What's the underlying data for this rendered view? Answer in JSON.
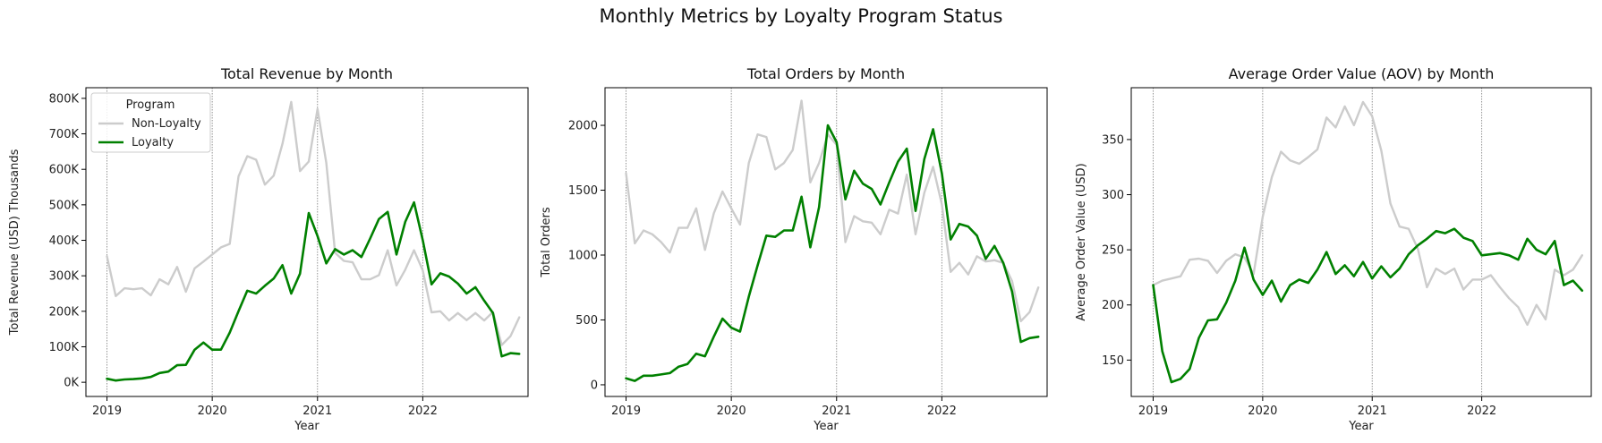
{
  "figure": {
    "suptitle": "Monthly Metrics by Loyalty Program Status"
  },
  "colors": {
    "non_loyalty": "#cccccc",
    "loyalty": "#008000",
    "vline": "#888888"
  },
  "legend": {
    "title": "Program",
    "entries": [
      "Non-Loyalty",
      "Loyalty"
    ],
    "placement": "top-left"
  },
  "chart_data": [
    {
      "type": "line",
      "title": "Total Revenue by Month",
      "xlabel": "Year",
      "ylabel": "Total Revenue (USD) Thousands",
      "xlim": [
        2018.8,
        2023.0
      ],
      "ylim": [
        -40,
        830
      ],
      "xticks": [
        2019,
        2020,
        2021,
        2022
      ],
      "xtick_labels": [
        "2019",
        "2020",
        "2021",
        "2022"
      ],
      "yticks": [
        0,
        100,
        200,
        300,
        400,
        500,
        600,
        700,
        800
      ],
      "ytick_labels": [
        "0K",
        "100K",
        "200K",
        "300K",
        "400K",
        "500K",
        "600K",
        "700K",
        "800K"
      ],
      "vlines": [
        2019,
        2020,
        2021,
        2022
      ],
      "legend": true,
      "x_months": "2019-01 to 2022-12 (monthly)",
      "series": [
        {
          "name": "Non-Loyalty",
          "values": [
            355,
            243,
            265,
            262,
            265,
            245,
            290,
            276,
            325,
            255,
            321,
            340,
            360,
            380,
            390,
            580,
            637,
            627,
            557,
            582,
            672,
            790,
            595,
            622,
            770,
            618,
            365,
            342,
            338,
            290,
            290,
            302,
            372,
            273,
            317,
            372,
            315,
            197,
            200,
            174,
            195,
            175,
            195,
            174,
            198,
            105,
            130,
            183
          ]
        },
        {
          "name": "Loyalty",
          "values": [
            10,
            5,
            8,
            9,
            11,
            15,
            26,
            30,
            48,
            49,
            92,
            112,
            92,
            92,
            140,
            200,
            258,
            250,
            272,
            292,
            330,
            250,
            306,
            477,
            412,
            335,
            375,
            360,
            372,
            353,
            405,
            460,
            480,
            360,
            452,
            507,
            400,
            276,
            307,
            298,
            278,
            250,
            268,
            230,
            195,
            73,
            82,
            80
          ]
        }
      ]
    },
    {
      "type": "line",
      "title": "Total Orders by Month",
      "xlabel": "Year",
      "ylabel": "Total Orders",
      "xlim": [
        2018.8,
        2023.0
      ],
      "ylim": [
        -90,
        2290
      ],
      "xticks": [
        2019,
        2020,
        2021,
        2022
      ],
      "xtick_labels": [
        "2019",
        "2020",
        "2021",
        "2022"
      ],
      "yticks": [
        0,
        500,
        1000,
        1500,
        2000
      ],
      "ytick_labels": [
        "0",
        "500",
        "1000",
        "1500",
        "2000"
      ],
      "vlines": [
        2019,
        2020,
        2021,
        2022
      ],
      "legend": false,
      "series": [
        {
          "name": "Non-Loyalty",
          "values": [
            1630,
            1090,
            1190,
            1160,
            1100,
            1020,
            1210,
            1210,
            1360,
            1040,
            1320,
            1490,
            1360,
            1235,
            1710,
            1930,
            1910,
            1660,
            1710,
            1810,
            2190,
            1560,
            1710,
            1930,
            1850,
            1100,
            1300,
            1260,
            1250,
            1160,
            1350,
            1320,
            1620,
            1160,
            1480,
            1680,
            1390,
            870,
            940,
            850,
            990,
            950,
            960,
            940,
            800,
            490,
            560,
            750
          ]
        },
        {
          "name": "Loyalty",
          "values": [
            50,
            30,
            70,
            70,
            80,
            90,
            140,
            160,
            240,
            220,
            370,
            510,
            440,
            410,
            680,
            920,
            1150,
            1140,
            1190,
            1190,
            1450,
            1060,
            1370,
            2000,
            1870,
            1430,
            1650,
            1550,
            1510,
            1390,
            1560,
            1720,
            1820,
            1340,
            1740,
            1970,
            1630,
            1120,
            1240,
            1220,
            1150,
            970,
            1070,
            940,
            720,
            330,
            360,
            370
          ]
        }
      ]
    },
    {
      "type": "line",
      "title": "Average Order Value (AOV) by Month",
      "xlabel": "Year",
      "ylabel": "Average Order Value (USD)",
      "xlim": [
        2018.8,
        2023.0
      ],
      "ylim": [
        117,
        397
      ],
      "xticks": [
        2019,
        2020,
        2021,
        2022
      ],
      "xtick_labels": [
        "2019",
        "2020",
        "2021",
        "2022"
      ],
      "yticks": [
        150,
        200,
        250,
        300,
        350
      ],
      "ytick_labels": [
        "150",
        "200",
        "250",
        "300",
        "350"
      ],
      "vlines": [
        2019,
        2020,
        2021,
        2022
      ],
      "legend": false,
      "series": [
        {
          "name": "Non-Loyalty",
          "values": [
            218,
            222,
            224,
            226,
            241,
            242,
            240,
            229,
            240,
            246,
            243,
            228,
            280,
            316,
            339,
            331,
            328,
            334,
            341,
            370,
            361,
            380,
            363,
            384,
            371,
            340,
            292,
            271,
            269,
            251,
            216,
            233,
            228,
            233,
            214,
            223,
            223,
            227,
            216,
            206,
            198,
            182,
            200,
            187,
            232,
            227,
            232,
            245
          ]
        },
        {
          "name": "Loyalty",
          "values": [
            218,
            158,
            130,
            133,
            142,
            170,
            186,
            187,
            202,
            222,
            252,
            223,
            209,
            222,
            203,
            218,
            223,
            220,
            232,
            248,
            228,
            236,
            226,
            239,
            224,
            235,
            225,
            233,
            246,
            254,
            260,
            267,
            265,
            269,
            261,
            258,
            245,
            246,
            247,
            245,
            241,
            260,
            250,
            246,
            258,
            218,
            222,
            213
          ]
        }
      ]
    }
  ]
}
